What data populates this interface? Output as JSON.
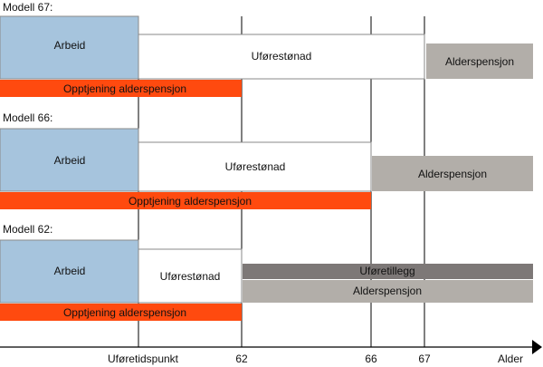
{
  "colors": {
    "arbeid": "#a6c4dd",
    "opptjening": "#ff4a0f",
    "alderspensjon": "#b2aea9",
    "uforetillegg": "#7d7877",
    "uforestonad": "#ffffff",
    "line": "#000000",
    "outline": "#8a8a8a"
  },
  "models": [
    {
      "title": "Modell 67:",
      "arbeid": "Arbeid",
      "uforestonad": "Uførestønad",
      "alderspensjon": "Alderspensjon",
      "opptjening": "Opptjening alderspensjon"
    },
    {
      "title": "Modell 66:",
      "arbeid": "Arbeid",
      "uforestonad": "Uførestønad",
      "alderspensjon": "Alderspensjon",
      "opptjening": "Opptjening alderspensjon"
    },
    {
      "title": "Modell 62:",
      "arbeid": "Arbeid",
      "uforestonad": "Uførestønad",
      "uforetillegg": "Uføretillegg",
      "alderspensjon": "Alderspensjon",
      "opptjening": "Opptjening alderspensjon"
    }
  ],
  "axis": {
    "ticks": [
      "Uføretidspunkt",
      "62",
      "66",
      "67"
    ],
    "label": "Alder"
  }
}
